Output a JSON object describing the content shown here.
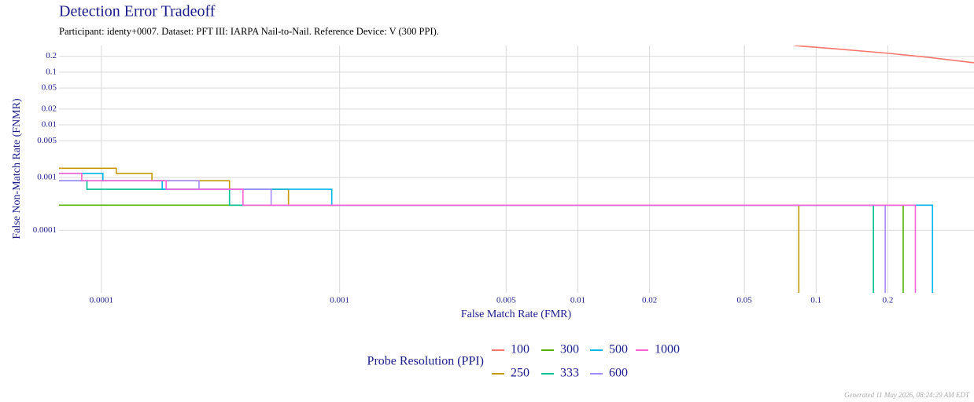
{
  "chart_data": {
    "type": "line",
    "log_x": true,
    "log_y": true,
    "grid": true,
    "title": "Detection Error Tradeoff",
    "subtitle": "Participant: identy+0007. Dataset: PFT III: IARPA Nail-to-Nail. Reference Device: V (300 PPI).",
    "x_label": "False Match Rate (FMR)",
    "y_label": "False Non-Match Rate (FNMR)",
    "legend_title": "Probe Resolution (PPI)",
    "legend_position": "bottom",
    "footer": "Generated 11 May 2026, 08:24:29 AM EDT",
    "xlim": [
      6.64e-05,
      0.46
    ],
    "ylim": [
      6.5e-06,
      0.32
    ],
    "xticks": [
      0.0001,
      0.001,
      0.005,
      0.01,
      0.02,
      0.05,
      0.1,
      0.2
    ],
    "yticks": [
      0.2,
      0.1,
      0.05,
      0.02,
      0.01,
      0.005,
      0.001,
      0.0001
    ],
    "series": [
      {
        "name": "100",
        "color": "#F8766D",
        "x": [
          0.0809,
          0.118,
          0.201,
          0.294,
          0.46
        ],
        "values": [
          0.32,
          0.28,
          0.228,
          0.192,
          0.151
        ]
      },
      {
        "name": "250",
        "color": "#C49A00",
        "x": [
          6.64e-05,
          0.0001155,
          0.0001155,
          0.000163,
          0.000163,
          0.000345,
          0.000345,
          0.00061,
          0.00061,
          0.0846,
          0.0846
        ],
        "values": [
          0.0015,
          0.0015,
          0.0012,
          0.0012,
          0.00087,
          0.00087,
          0.0006,
          0.0006,
          0.0003,
          0.0003,
          6.5e-06
        ]
      },
      {
        "name": "300",
        "color": "#53B400",
        "x": [
          6.64e-05,
          0.232,
          0.232
        ],
        "values": [
          0.0003,
          0.0003,
          6.5e-06
        ]
      },
      {
        "name": "333",
        "color": "#00C094",
        "x": [
          6.64e-05,
          8.7e-05,
          8.7e-05,
          0.000345,
          0.000345,
          0.174,
          0.174
        ],
        "values": [
          0.00087,
          0.00087,
          0.0006,
          0.0006,
          0.0003,
          0.0003,
          6.5e-06
        ]
      },
      {
        "name": "500",
        "color": "#00B6EB",
        "x": [
          6.64e-05,
          0.0001015,
          0.0001015,
          0.00018,
          0.00018,
          0.000927,
          0.000927,
          0.308,
          0.308
        ],
        "values": [
          0.0012,
          0.0012,
          0.00087,
          0.00087,
          0.0006,
          0.0006,
          0.0003,
          0.0003,
          6.5e-06
        ]
      },
      {
        "name": "600",
        "color": "#A58AFF",
        "x": [
          6.64e-05,
          0.000257,
          0.000257,
          0.000516,
          0.000516,
          0.195,
          0.195
        ],
        "values": [
          0.00087,
          0.00087,
          0.0006,
          0.0006,
          0.0003,
          0.0003,
          6.5e-06
        ]
      },
      {
        "name": "1000",
        "color": "#FB61D7",
        "x": [
          6.64e-05,
          8.27e-05,
          8.27e-05,
          0.000187,
          0.000187,
          0.000393,
          0.000393,
          0.261,
          0.261
        ],
        "values": [
          0.0012,
          0.0012,
          0.00087,
          0.00087,
          0.0006,
          0.0006,
          0.0003,
          0.0003,
          6.5e-06
        ]
      }
    ]
  }
}
